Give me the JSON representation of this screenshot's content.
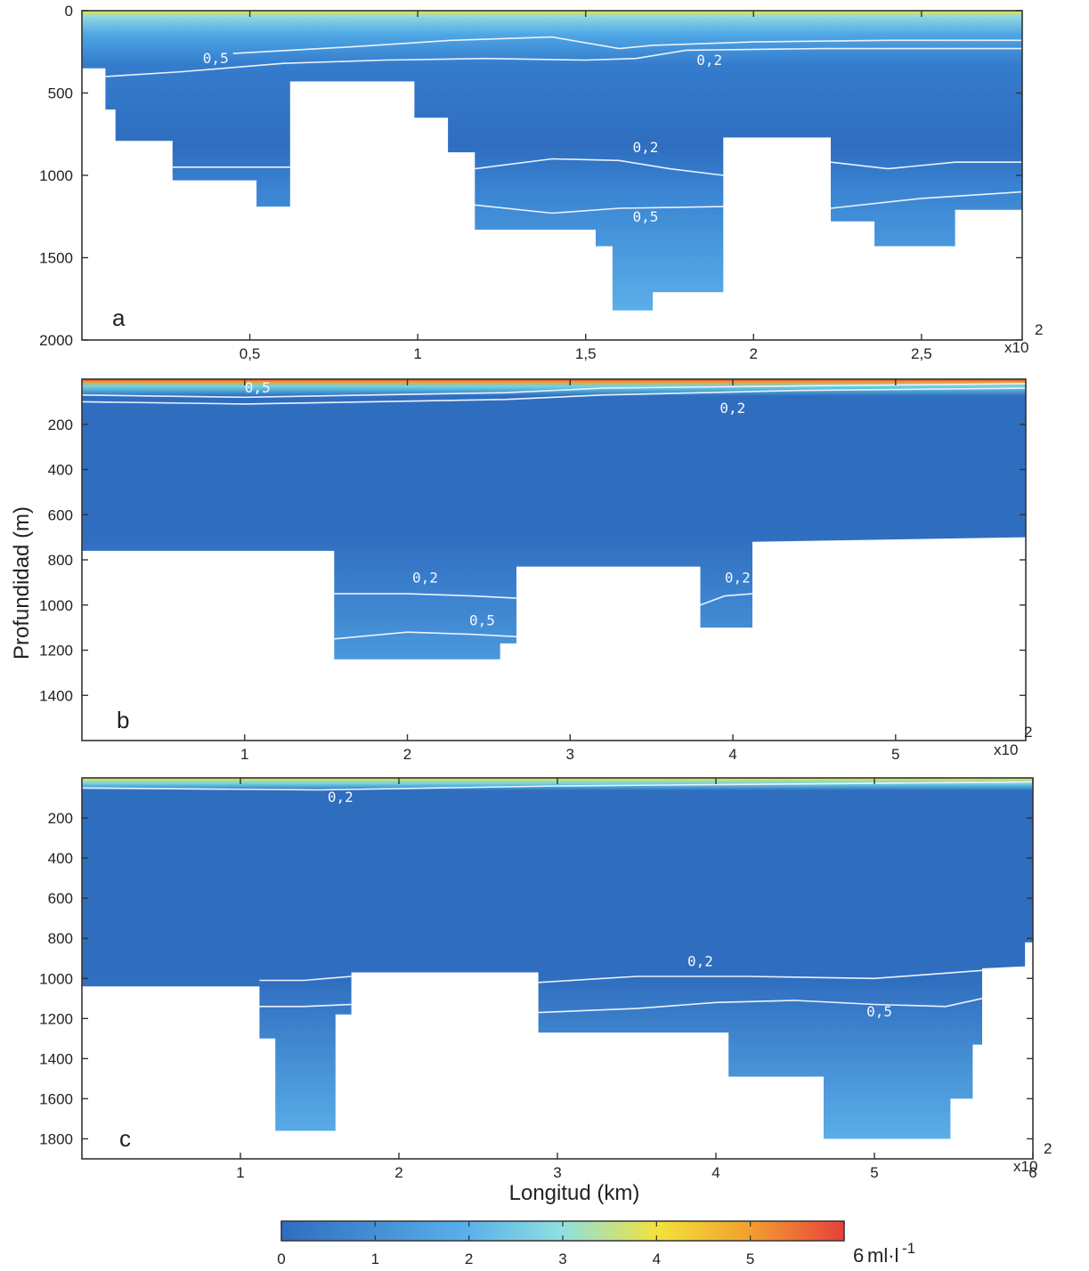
{
  "y_axis_label": "Profundidad (m)",
  "x_axis_label": "Longitud (km)",
  "colors": {
    "deep": "#2f6dbf",
    "mid": "#3f8fd8",
    "light": "#62b4ea",
    "cyan": "#6fd6e6",
    "yellow": "#f2e23a",
    "orange": "#f2a030",
    "red": "#e8403a",
    "land": "#ffffff",
    "contour": "#eaf2ff"
  },
  "chart_data": [
    {
      "type": "heatmap",
      "panel_label": "a",
      "xlim": [
        0,
        2.8
      ],
      "ylim": [
        0,
        2000
      ],
      "x_ticks": [
        0.5,
        1,
        1.5,
        2,
        2.5
      ],
      "x_tick_labels": [
        "0,5",
        "1",
        "1,5",
        "2",
        "2,5"
      ],
      "y_ticks": [
        0,
        500,
        1000,
        1500,
        2000
      ],
      "y_tick_labels": [
        "0",
        "500",
        "1000",
        "1500",
        "2000"
      ],
      "x_multiplier_base": "x10",
      "x_multiplier_exp": "2",
      "bottom_profile": [
        [
          0,
          350
        ],
        [
          0.07,
          350
        ],
        [
          0.07,
          600
        ],
        [
          0.1,
          600
        ],
        [
          0.1,
          790
        ],
        [
          0.27,
          790
        ],
        [
          0.27,
          1030
        ],
        [
          0.52,
          1030
        ],
        [
          0.52,
          1190
        ],
        [
          0.62,
          1190
        ],
        [
          0.62,
          430
        ],
        [
          0.99,
          430
        ],
        [
          0.99,
          650
        ],
        [
          1.09,
          650
        ],
        [
          1.09,
          860
        ],
        [
          1.17,
          860
        ],
        [
          1.17,
          1330
        ],
        [
          1.53,
          1330
        ],
        [
          1.53,
          1430
        ],
        [
          1.58,
          1430
        ],
        [
          1.58,
          1820
        ],
        [
          1.7,
          1820
        ],
        [
          1.7,
          1710
        ],
        [
          1.91,
          1710
        ],
        [
          1.91,
          770
        ],
        [
          2.23,
          770
        ],
        [
          2.23,
          1280
        ],
        [
          2.36,
          1280
        ],
        [
          2.36,
          1430
        ],
        [
          2.6,
          1430
        ],
        [
          2.6,
          1210
        ],
        [
          2.8,
          1210
        ]
      ],
      "contours": [
        {
          "level": "0,5",
          "points": [
            [
              0.07,
              400
            ],
            [
              0.3,
              370
            ],
            [
              0.6,
              320
            ],
            [
              0.9,
              300
            ],
            [
              1.2,
              290
            ],
            [
              1.5,
              300
            ],
            [
              1.65,
              290
            ],
            [
              1.8,
              240
            ],
            [
              2.2,
              230
            ],
            [
              2.8,
              230
            ]
          ],
          "label_x": 0.36,
          "label_y": 320
        },
        {
          "level": "0,2",
          "points": [
            [
              0.45,
              260
            ],
            [
              0.8,
              220
            ],
            [
              1.1,
              180
            ],
            [
              1.4,
              160
            ],
            [
              1.6,
              230
            ],
            [
              1.7,
              210
            ],
            [
              2.0,
              190
            ],
            [
              2.4,
              180
            ],
            [
              2.8,
              180
            ]
          ],
          "label_x": 1.83,
          "label_y": 330
        },
        {
          "level": "0,2",
          "points": [
            [
              0.27,
              950
            ],
            [
              0.62,
              950
            ]
          ],
          "label_x": null,
          "label_y": null
        },
        {
          "level": "0,2",
          "points": [
            [
              1.17,
              960
            ],
            [
              1.4,
              900
            ],
            [
              1.6,
              910
            ],
            [
              1.75,
              960
            ],
            [
              1.91,
              1000
            ]
          ],
          "label_x": 1.64,
          "label_y": 860
        },
        {
          "level": "0,2",
          "points": [
            [
              2.23,
              920
            ],
            [
              2.4,
              960
            ],
            [
              2.6,
              920
            ],
            [
              2.8,
              920
            ]
          ],
          "label_x": null,
          "label_y": null
        },
        {
          "level": "0,5",
          "points": [
            [
              1.17,
              1180
            ],
            [
              1.4,
              1230
            ],
            [
              1.6,
              1200
            ],
            [
              1.91,
              1190
            ]
          ],
          "label_x": 1.64,
          "label_y": 1280
        },
        {
          "level": "0,5",
          "points": [
            [
              2.23,
              1200
            ],
            [
              2.5,
              1140
            ],
            [
              2.8,
              1100
            ]
          ],
          "label_x": null,
          "label_y": null
        }
      ]
    },
    {
      "type": "heatmap",
      "panel_label": "b",
      "xlim": [
        0,
        5.8
      ],
      "ylim": [
        0,
        1600
      ],
      "x_ticks": [
        1,
        2,
        3,
        4,
        5
      ],
      "x_tick_labels": [
        "1",
        "2",
        "3",
        "4",
        "5"
      ],
      "y_ticks": [
        200,
        400,
        600,
        800,
        1000,
        1200,
        1400
      ],
      "y_tick_labels": [
        "200",
        "400",
        "600",
        "800",
        "1000",
        "1200",
        "1400"
      ],
      "x_multiplier_base": "x10",
      "x_multiplier_exp": "2",
      "bottom_profile": [
        [
          0,
          760
        ],
        [
          1.55,
          760
        ],
        [
          1.55,
          1240
        ],
        [
          2.57,
          1240
        ],
        [
          2.57,
          1170
        ],
        [
          2.67,
          1170
        ],
        [
          2.67,
          830
        ],
        [
          3.8,
          830
        ],
        [
          3.8,
          1100
        ],
        [
          4.12,
          1100
        ],
        [
          4.12,
          720
        ],
        [
          5.8,
          700
        ]
      ],
      "contours": [
        {
          "level": "0,5",
          "points": [
            [
              0,
              70
            ],
            [
              1.0,
              80
            ],
            [
              2.6,
              60
            ],
            [
              3.2,
              40
            ],
            [
              4.4,
              30
            ],
            [
              5.8,
              20
            ]
          ],
          "label_x": 1.0,
          "label_y": 60
        },
        {
          "level": "0,2",
          "points": [
            [
              0,
              100
            ],
            [
              1.0,
              110
            ],
            [
              2.6,
              90
            ],
            [
              3.2,
              70
            ],
            [
              4.4,
              50
            ],
            [
              5.8,
              40
            ]
          ],
          "label_x": 3.92,
          "label_y": 150
        },
        {
          "level": "0,2",
          "points": [
            [
              1.55,
              950
            ],
            [
              2.0,
              950
            ],
            [
              2.4,
              960
            ],
            [
              2.67,
              970
            ]
          ],
          "label_x": 2.03,
          "label_y": 900
        },
        {
          "level": "0,5",
          "points": [
            [
              1.55,
              1150
            ],
            [
              2.0,
              1120
            ],
            [
              2.4,
              1130
            ],
            [
              2.67,
              1140
            ]
          ],
          "label_x": 2.38,
          "label_y": 1090
        },
        {
          "level": "0,2",
          "points": [
            [
              3.8,
              1000
            ],
            [
              3.95,
              960
            ],
            [
              4.12,
              950
            ]
          ],
          "label_x": 3.95,
          "label_y": 900
        }
      ]
    },
    {
      "type": "heatmap",
      "panel_label": "c",
      "xlim": [
        0,
        6
      ],
      "ylim": [
        0,
        1900
      ],
      "x_ticks": [
        1,
        2,
        3,
        4,
        5,
        6
      ],
      "x_tick_labels": [
        "1",
        "2",
        "3",
        "4",
        "5",
        "6"
      ],
      "y_ticks": [
        200,
        400,
        600,
        800,
        1000,
        1200,
        1400,
        1600,
        1800
      ],
      "y_tick_labels": [
        "200",
        "400",
        "600",
        "800",
        "1000",
        "1200",
        "1400",
        "1600",
        "1800"
      ],
      "x_multiplier_base": "x10",
      "x_multiplier_exp": "2",
      "bottom_profile": [
        [
          0,
          1040
        ],
        [
          1.12,
          1040
        ],
        [
          1.12,
          1300
        ],
        [
          1.22,
          1300
        ],
        [
          1.22,
          1760
        ],
        [
          1.6,
          1760
        ],
        [
          1.6,
          1180
        ],
        [
          1.7,
          1180
        ],
        [
          1.7,
          970
        ],
        [
          2.88,
          970
        ],
        [
          2.88,
          1270
        ],
        [
          4.08,
          1270
        ],
        [
          4.08,
          1490
        ],
        [
          4.68,
          1490
        ],
        [
          4.68,
          1800
        ],
        [
          5.48,
          1800
        ],
        [
          5.48,
          1600
        ],
        [
          5.62,
          1600
        ],
        [
          5.62,
          1330
        ],
        [
          5.68,
          1330
        ],
        [
          5.68,
          950
        ],
        [
          5.95,
          940
        ],
        [
          5.95,
          820
        ],
        [
          6,
          820
        ]
      ],
      "contours": [
        {
          "level": "0,2",
          "points": [
            [
              0,
              50
            ],
            [
              1.5,
              60
            ],
            [
              3,
              40
            ],
            [
              4.5,
              30
            ],
            [
              6,
              20
            ]
          ],
          "label_x": 1.55,
          "label_y": 120
        },
        {
          "level": "0,2",
          "points": [
            [
              1.12,
              1010
            ],
            [
              1.4,
              1010
            ],
            [
              1.7,
              990
            ]
          ],
          "label_x": null,
          "label_y": null
        },
        {
          "level": "0,5",
          "points": [
            [
              1.12,
              1140
            ],
            [
              1.4,
              1140
            ],
            [
              1.7,
              1130
            ]
          ],
          "label_x": null,
          "label_y": null
        },
        {
          "level": "0,2",
          "points": [
            [
              2.88,
              1020
            ],
            [
              3.5,
              990
            ],
            [
              4.2,
              990
            ],
            [
              5.0,
              1000
            ],
            [
              5.68,
              960
            ]
          ],
          "label_x": 3.82,
          "label_y": 940
        },
        {
          "level": "0,5",
          "points": [
            [
              2.88,
              1170
            ],
            [
              3.5,
              1150
            ],
            [
              4.0,
              1120
            ],
            [
              4.5,
              1110
            ],
            [
              5.0,
              1130
            ],
            [
              5.45,
              1140
            ],
            [
              5.68,
              1100
            ]
          ],
          "label_x": 4.95,
          "label_y": 1190
        }
      ]
    }
  ],
  "colorbar": {
    "ticks": [
      0,
      1,
      2,
      3,
      4,
      5,
      6
    ],
    "tick_labels": [
      "0",
      "1",
      "2",
      "3",
      "4",
      "5",
      ""
    ],
    "max_label": "6",
    "units": "ml·l",
    "units_exp": "-1"
  }
}
